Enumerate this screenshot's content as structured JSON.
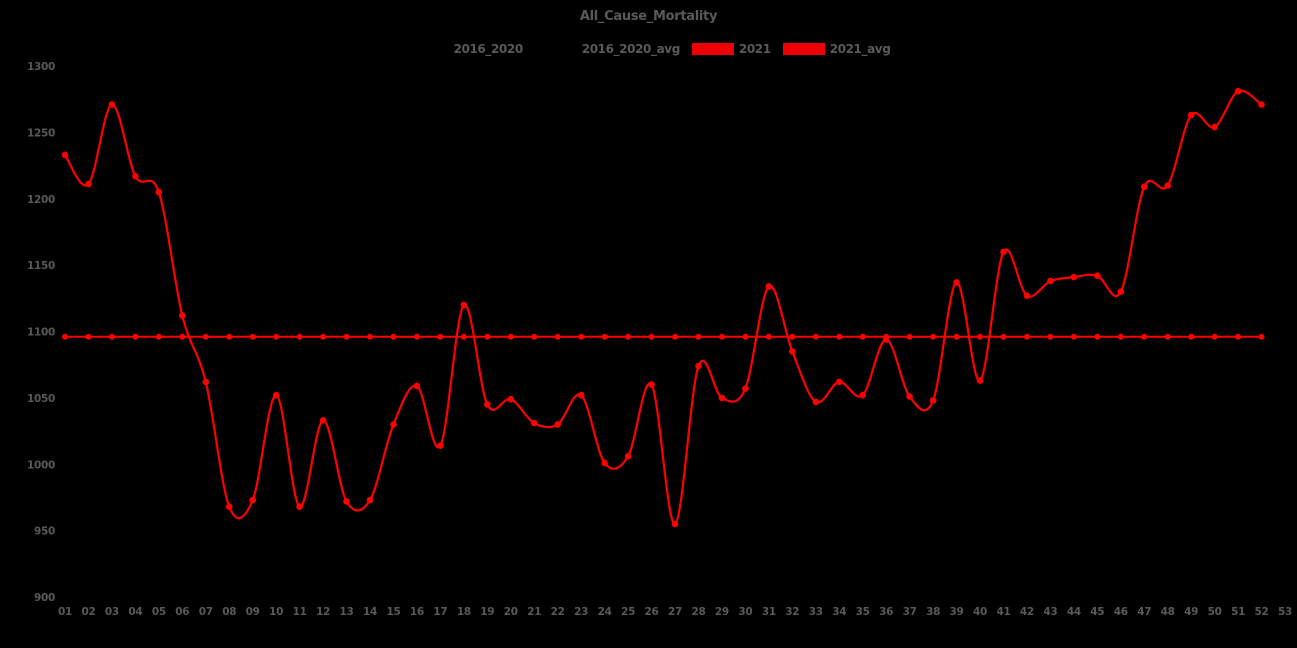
{
  "header": {
    "title": "All_Cause_Mortality"
  },
  "colors": {
    "background": "#000000",
    "text": "#595959",
    "line_red": "#ff0000",
    "swatch_red": "#ee0000",
    "swatch_black": "#000000"
  },
  "legend": {
    "items": [
      {
        "label": "2016_2020",
        "swatch_color": "#000000"
      },
      {
        "label": "2016_2020_avg",
        "swatch_color": "#000000"
      },
      {
        "label": "2021",
        "swatch_color": "#ee0000"
      },
      {
        "label": "2021_avg",
        "swatch_color": "#ee0000"
      }
    ]
  },
  "chart_data": {
    "type": "line",
    "title": "All_Cause_Mortality",
    "xlabel": "",
    "ylabel": "",
    "grid": false,
    "legend_position": "top-center",
    "ylim": [
      900,
      1300
    ],
    "y_ticks": [
      900,
      950,
      1000,
      1050,
      1100,
      1150,
      1200,
      1250,
      1300
    ],
    "x_tick_labels": [
      "01",
      "02",
      "03",
      "04",
      "05",
      "06",
      "07",
      "08",
      "09",
      "10",
      "11",
      "12",
      "13",
      "14",
      "15",
      "16",
      "17",
      "18",
      "19",
      "20",
      "21",
      "22",
      "23",
      "24",
      "25",
      "26",
      "27",
      "28",
      "29",
      "30",
      "31",
      "32",
      "33",
      "34",
      "35",
      "36",
      "37",
      "38",
      "39",
      "40",
      "41",
      "42",
      "43",
      "44",
      "45",
      "46",
      "47",
      "48",
      "49",
      "50",
      "51",
      "52",
      "53"
    ],
    "series": [
      {
        "name": "2016_2020",
        "color": "#000000",
        "visible_against_background": false
      },
      {
        "name": "2016_2020_avg",
        "color": "#000000",
        "visible_against_background": false
      },
      {
        "name": "2021",
        "color": "#ff0000",
        "marker": "circle",
        "weeks": [
          1,
          2,
          3,
          4,
          5,
          6,
          7,
          8,
          9,
          10,
          11,
          12,
          13,
          14,
          15,
          16,
          17,
          18,
          19,
          20,
          21,
          22,
          23,
          24,
          25,
          26,
          27,
          28,
          29,
          30,
          31,
          32,
          33,
          34,
          35,
          36,
          37,
          38,
          39,
          40,
          41,
          42,
          43,
          44,
          45,
          46,
          47,
          48,
          49,
          50,
          51,
          52
        ],
        "values": [
          1233,
          1211,
          1271,
          1217,
          1205,
          1112,
          1062,
          968,
          973,
          1052,
          968,
          1033,
          972,
          973,
          1030,
          1059,
          1014,
          1120,
          1045,
          1049,
          1031,
          1030,
          1052,
          1001,
          1006,
          1060,
          955,
          1074,
          1050,
          1057,
          1134,
          1085,
          1047,
          1062,
          1052,
          1094,
          1051,
          1048,
          1137,
          1063,
          1160,
          1127,
          1138,
          1141,
          1142,
          1130,
          1209,
          1210,
          1263,
          1254,
          1281,
          1271
        ]
      },
      {
        "name": "2021_avg",
        "color": "#ff0000",
        "marker": "circle",
        "constant_value": 1096,
        "weeks_span": [
          1,
          52
        ]
      }
    ]
  }
}
